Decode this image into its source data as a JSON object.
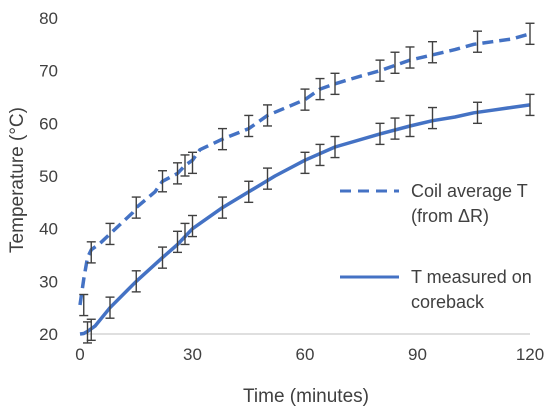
{
  "chart_data": {
    "type": "line",
    "xlabel": "Time (minutes)",
    "ylabel": "Temperature (°C)",
    "xlim": [
      0,
      120
    ],
    "ylim": [
      20,
      80
    ],
    "xticks": [
      0,
      30,
      60,
      90,
      120
    ],
    "yticks": [
      20,
      30,
      40,
      50,
      60,
      70,
      80
    ],
    "grid": false,
    "legend_position": "right",
    "series": [
      {
        "name": "Coil average T (from ΔR)",
        "line_style": "dashed",
        "color": "#4472c4",
        "x": [
          0,
          1,
          2,
          3,
          4,
          5,
          8,
          14,
          15,
          20,
          22,
          26,
          28,
          30,
          32,
          38,
          45,
          50,
          55,
          60,
          64,
          68,
          75,
          80,
          84,
          88,
          94,
          100,
          105,
          110,
          115,
          120
        ],
        "y": [
          25.5,
          30.5,
          34.5,
          36,
          36.5,
          37,
          39,
          43,
          44,
          47,
          49,
          50.5,
          52,
          53,
          55,
          57,
          59,
          61.5,
          63,
          64.5,
          66.5,
          67.5,
          69,
          70,
          71,
          72,
          73,
          74,
          75,
          75.5,
          76,
          77
        ],
        "error_x": [
          1,
          3,
          8,
          15,
          22,
          26,
          28,
          30,
          38,
          45,
          50,
          60,
          64,
          68,
          80,
          84,
          88,
          94,
          106,
          120
        ],
        "error_y": [
          25.5,
          35.5,
          39,
          44,
          49,
          50.5,
          52,
          52.5,
          57,
          59.5,
          61.5,
          64.5,
          66.5,
          67.5,
          70,
          71.5,
          72.5,
          73.5,
          75.5,
          77
        ],
        "error_plus_minus": 2
      },
      {
        "name": "T measured on coreback",
        "line_style": "solid",
        "color": "#4472c4",
        "x": [
          0,
          1,
          2,
          4,
          8,
          15,
          22,
          26,
          30,
          38,
          45,
          52,
          60,
          68,
          80,
          88,
          94,
          100,
          105,
          110,
          115,
          120
        ],
        "y": [
          20,
          20.1,
          20.5,
          21.5,
          25,
          30,
          34.5,
          37,
          40,
          44,
          47,
          50,
          53,
          55.5,
          58,
          59.5,
          60.5,
          61.2,
          62,
          62.5,
          63,
          63.5
        ],
        "error_x": [
          2,
          3,
          8,
          15,
          22,
          26,
          28,
          30,
          38,
          45,
          50,
          60,
          64,
          68,
          80,
          84,
          88,
          94,
          106,
          120
        ],
        "error_y": [
          20.3,
          20.8,
          25,
          30,
          34.5,
          37.5,
          39,
          40.5,
          44,
          47,
          49.5,
          52.5,
          54,
          55.5,
          58,
          59,
          59.5,
          61,
          62,
          63.5
        ],
        "error_plus_minus": 2
      }
    ],
    "legend": {
      "entries": [
        {
          "lines": [
            "Coil average T",
            "(from ΔR)"
          ]
        },
        {
          "lines": [
            "T measured on",
            "coreback"
          ]
        }
      ]
    }
  }
}
